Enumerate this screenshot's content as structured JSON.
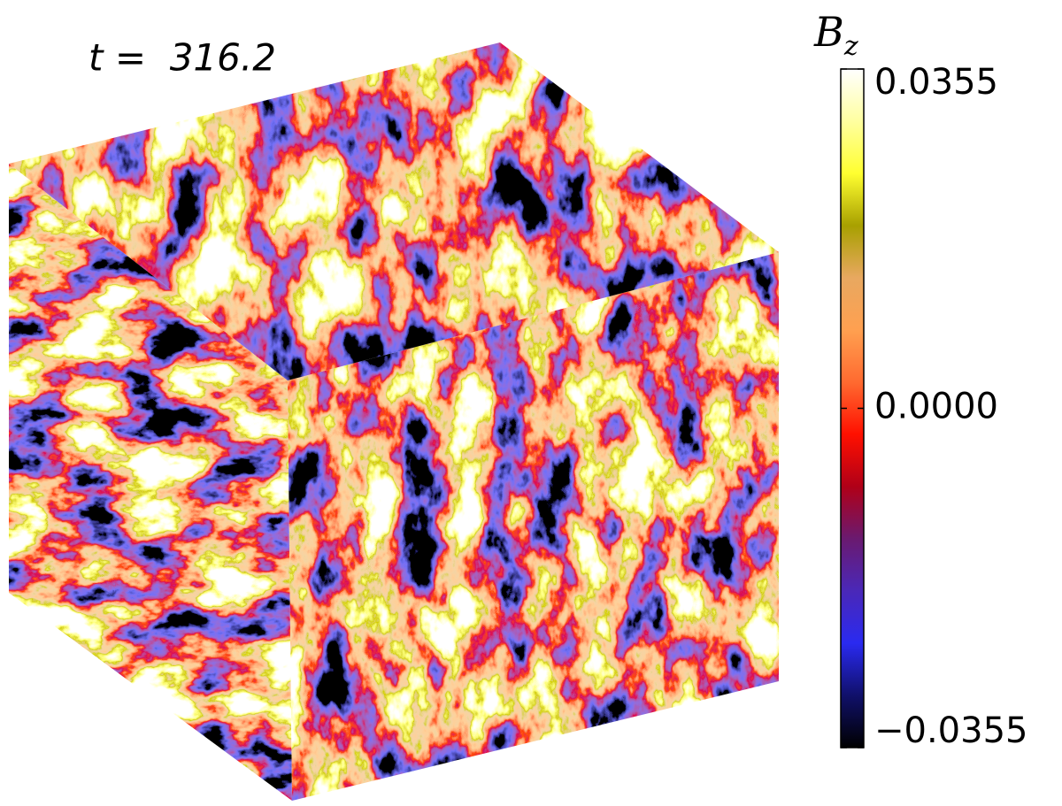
{
  "chart_data": {
    "type": "volume",
    "title": "t =  316.2",
    "colorbar": {
      "label": "B",
      "label_subscript": "z",
      "lim": [
        -0.0355,
        0.0355
      ],
      "ticks": [
        {
          "value": 0.0355,
          "label": "0.0355"
        },
        {
          "value": 0,
          "label": "0.0000"
        },
        {
          "value": -0.0355,
          "label": "−0.0355"
        }
      ],
      "colormap": [
        "#000000",
        "#10106a",
        "#2a2af0",
        "#4a28b8",
        "#6a1a70",
        "#b00018",
        "#ff1000",
        "#ff6a30",
        "#ffa050",
        "#e8a860",
        "#a8a000",
        "#ffff30",
        "#ffffa0",
        "#ffffff"
      ]
    }
  }
}
